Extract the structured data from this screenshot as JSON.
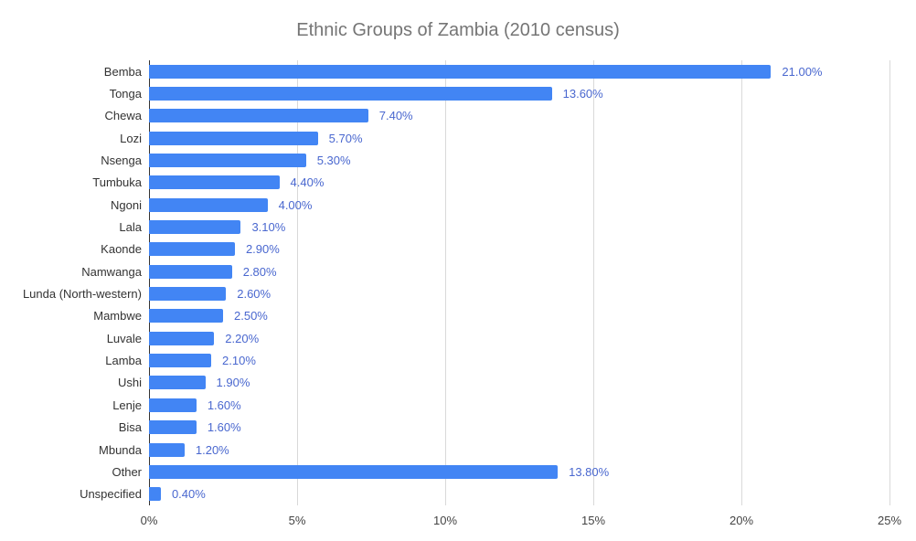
{
  "chart_data": {
    "type": "bar",
    "orientation": "horizontal",
    "title": "Ethnic Groups of Zambia (2010 census)",
    "categories": [
      "Bemba",
      "Tonga",
      "Chewa",
      "Lozi",
      "Nsenga",
      "Tumbuka",
      "Ngoni",
      "Lala",
      "Kaonde",
      "Namwanga",
      "Lunda (North-western)",
      "Mambwe",
      "Luvale",
      "Lamba",
      "Ushi",
      "Lenje",
      "Bisa",
      "Mbunda",
      "Other",
      "Unspecified"
    ],
    "values": [
      21.0,
      13.6,
      7.4,
      5.7,
      5.3,
      4.4,
      4.0,
      3.1,
      2.9,
      2.8,
      2.6,
      2.5,
      2.2,
      2.1,
      1.9,
      1.6,
      1.6,
      1.2,
      13.8,
      0.4
    ],
    "value_labels": [
      "21.00%",
      "13.60%",
      "7.40%",
      "5.70%",
      "5.30%",
      "4.40%",
      "4.00%",
      "3.10%",
      "2.90%",
      "2.80%",
      "2.60%",
      "2.50%",
      "2.20%",
      "2.10%",
      "1.90%",
      "1.60%",
      "1.60%",
      "1.20%",
      "13.80%",
      "0.40%"
    ],
    "x_ticks": [
      "0%",
      "5%",
      "10%",
      "15%",
      "20%",
      "25%"
    ],
    "x_tick_values": [
      0,
      5,
      10,
      15,
      20,
      25
    ],
    "xlim": [
      0,
      25
    ],
    "grid": true,
    "legend": "none"
  },
  "colors": {
    "bar": "#4285f4",
    "value_label": "#4967cf",
    "title": "#757575",
    "axis_tick_label": "#444444",
    "category_label": "#333333",
    "gridline": "#d9d9d9",
    "baseline": "#333333"
  }
}
